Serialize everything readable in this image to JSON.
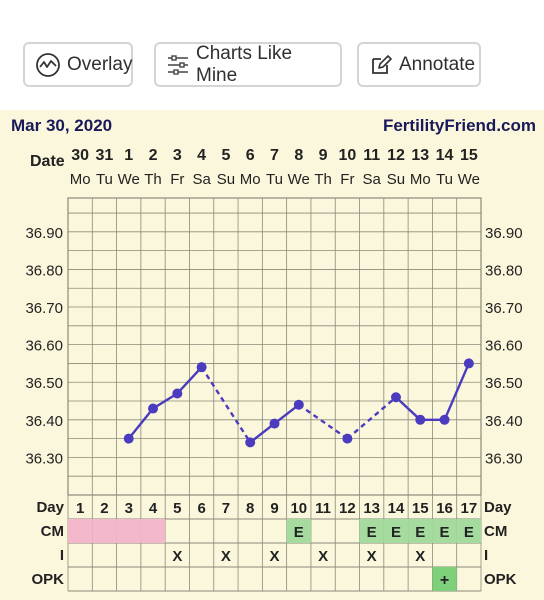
{
  "toolbar": {
    "overlay_label": "Overlay",
    "charts_like_mine_label": "Charts Like Mine",
    "annotate_label": "Annotate"
  },
  "chart_header": {
    "date": "Mar 30, 2020",
    "site": "FertilityFriend.com"
  },
  "colors": {
    "background": "#fbf7dc",
    "grid": "#8a8a7a",
    "line": "#4b3bbf",
    "cm_pink": "#f4b8cc",
    "cm_green": "#a6dba0",
    "opk_green": "#7fd07a"
  },
  "chart_data": {
    "type": "line",
    "title": "",
    "row_labels": {
      "date": "Date",
      "day": "Day",
      "cm": "CM",
      "intercourse": "I",
      "opk": "OPK"
    },
    "dates": [
      "30",
      "31",
      "1",
      "2",
      "3",
      "4",
      "5",
      "6",
      "7",
      "8",
      "9",
      "10",
      "11",
      "12",
      "13",
      "14",
      "15"
    ],
    "weekdays": [
      "Mo",
      "Tu",
      "We",
      "Th",
      "Fr",
      "Sa",
      "Su",
      "Mo",
      "Tu",
      "We",
      "Th",
      "Fr",
      "Sa",
      "Su",
      "Mo",
      "Tu",
      "We"
    ],
    "days": [
      "1",
      "2",
      "3",
      "4",
      "5",
      "6",
      "7",
      "8",
      "9",
      "10",
      "11",
      "12",
      "13",
      "14",
      "15",
      "16",
      "17"
    ],
    "y_ticks": [
      "36.90",
      "36.80",
      "36.70",
      "36.60",
      "36.50",
      "36.40",
      "36.30"
    ],
    "ylim": [
      36.2,
      36.99
    ],
    "temperatures": [
      null,
      null,
      36.35,
      36.43,
      36.47,
      36.54,
      null,
      36.34,
      36.39,
      36.44,
      null,
      36.35,
      null,
      36.46,
      36.4,
      36.4,
      36.55
    ],
    "cm": [
      "pink",
      "pink",
      "pink",
      "pink",
      "",
      "",
      "",
      "",
      "",
      "E",
      "",
      "",
      "E",
      "E",
      "E",
      "E",
      "E"
    ],
    "intercourse": [
      "",
      "",
      "",
      "",
      "X",
      "",
      "X",
      "",
      "X",
      "",
      "X",
      "",
      "X",
      "",
      "X",
      "",
      ""
    ],
    "opk": [
      "",
      "",
      "",
      "",
      "",
      "",
      "",
      "",
      "",
      "",
      "",
      "",
      "",
      "",
      "",
      "+",
      ""
    ],
    "grid": true
  }
}
